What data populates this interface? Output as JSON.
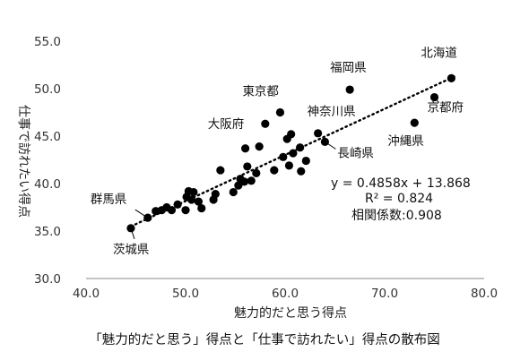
{
  "chart_data": {
    "type": "scatter",
    "title": "",
    "xlabel": "魅力的だと思う得点",
    "ylabel": "仕事で訪れたい得点",
    "xlim": [
      40.0,
      80.0
    ],
    "ylim": [
      30.0,
      55.0
    ],
    "x_ticks": [
      "40.0",
      "50.0",
      "60.0",
      "70.0",
      "80.0"
    ],
    "y_ticks": [
      "30.0",
      "35.0",
      "40.0",
      "45.0",
      "50.0",
      "55.0"
    ],
    "grid": false,
    "marker_color": "#000000",
    "trendline": {
      "type": "linear",
      "slope": 0.4858,
      "intercept": 13.868,
      "style": "dotted",
      "equation": "y = 0.4858x + 13.868",
      "r2": "R² = 0.824",
      "correlation": "相関係数:0.908"
    },
    "points": [
      {
        "x": 76.7,
        "y": 51.1,
        "label": "北海道"
      },
      {
        "x": 66.5,
        "y": 49.9,
        "label": "福岡県"
      },
      {
        "x": 75.0,
        "y": 49.1,
        "label": "京都府"
      },
      {
        "x": 59.5,
        "y": 47.5,
        "label": "東京都"
      },
      {
        "x": 73.0,
        "y": 46.4,
        "label": "沖縄県"
      },
      {
        "x": 58.0,
        "y": 46.3,
        "label": "大阪府"
      },
      {
        "x": 63.3,
        "y": 45.3,
        "label": "神奈川県"
      },
      {
        "x": 64.0,
        "y": 44.4,
        "label": "長崎県"
      },
      {
        "x": 44.5,
        "y": 35.3,
        "label": "茨城県"
      },
      {
        "x": 46.2,
        "y": 36.4,
        "label": "群馬県"
      },
      {
        "x": 47.0,
        "y": 37.1
      },
      {
        "x": 47.6,
        "y": 37.2
      },
      {
        "x": 48.1,
        "y": 37.5
      },
      {
        "x": 48.6,
        "y": 37.2
      },
      {
        "x": 49.2,
        "y": 37.8
      },
      {
        "x": 50.0,
        "y": 37.2
      },
      {
        "x": 50.1,
        "y": 38.6
      },
      {
        "x": 50.3,
        "y": 39.2
      },
      {
        "x": 50.8,
        "y": 39.1
      },
      {
        "x": 50.6,
        "y": 38.3
      },
      {
        "x": 51.3,
        "y": 38.1
      },
      {
        "x": 51.6,
        "y": 37.4
      },
      {
        "x": 52.8,
        "y": 38.3
      },
      {
        "x": 53.0,
        "y": 38.9
      },
      {
        "x": 53.5,
        "y": 41.4
      },
      {
        "x": 54.8,
        "y": 39.1
      },
      {
        "x": 55.3,
        "y": 39.8
      },
      {
        "x": 55.5,
        "y": 40.5
      },
      {
        "x": 55.9,
        "y": 40.2
      },
      {
        "x": 56.2,
        "y": 41.8
      },
      {
        "x": 56.0,
        "y": 43.7
      },
      {
        "x": 56.6,
        "y": 40.3
      },
      {
        "x": 57.1,
        "y": 41.1
      },
      {
        "x": 57.4,
        "y": 43.9
      },
      {
        "x": 58.9,
        "y": 41.4
      },
      {
        "x": 59.8,
        "y": 42.8
      },
      {
        "x": 60.2,
        "y": 44.7
      },
      {
        "x": 60.6,
        "y": 45.2
      },
      {
        "x": 60.4,
        "y": 41.9
      },
      {
        "x": 60.8,
        "y": 43.2
      },
      {
        "x": 61.5,
        "y": 43.8
      },
      {
        "x": 61.6,
        "y": 41.3
      },
      {
        "x": 62.1,
        "y": 42.4
      }
    ]
  },
  "caption": "「魅力的だと思う」得点と「仕事で訪れたい」得点の散布図"
}
